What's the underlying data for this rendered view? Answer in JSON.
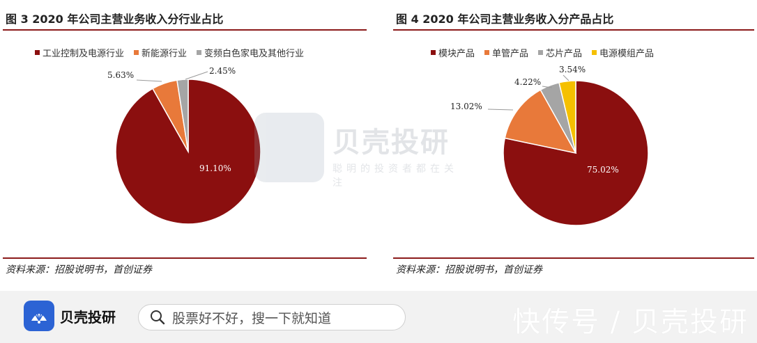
{
  "chart_data": [
    {
      "type": "pie",
      "title": "图 3 2020 年公司主营业务收入分行业占比",
      "categories": [
        "工业控制及电源行业",
        "新能源行业",
        "变频白色家电及其他行业"
      ],
      "values": [
        91.1,
        5.63,
        2.45
      ],
      "value_labels": [
        "91.10%",
        "5.63%",
        "2.45%"
      ],
      "colors": [
        "#8b0f0f",
        "#e8793a",
        "#a5a5a5"
      ],
      "legend": "top",
      "source": "资料来源：招股说明书，首创证券"
    },
    {
      "type": "pie",
      "title": "图 4 2020 年公司主营业务收入分产品占比",
      "categories": [
        "模块产品",
        "单管产品",
        "芯片产品",
        "电源模组产品"
      ],
      "values": [
        75.02,
        13.02,
        4.22,
        3.54
      ],
      "value_labels": [
        "75.02%",
        "13.02%",
        "4.22%",
        "3.54%"
      ],
      "colors": [
        "#8b0f0f",
        "#e8793a",
        "#a5a5a5",
        "#f5c000"
      ],
      "legend": "top",
      "source": "资料来源：招股说明书，首创证券"
    }
  ],
  "watermark": {
    "name": "贝壳投研",
    "slogan": "聪明的投资者都在关注"
  },
  "bottom_bar": {
    "brand": "贝壳投研",
    "search_placeholder": "股票好不好，搜一下就知道",
    "platform": "快传号 / 贝壳投研"
  },
  "icons": {
    "search": "search-icon",
    "brand_logo": "shell-logo-icon"
  }
}
